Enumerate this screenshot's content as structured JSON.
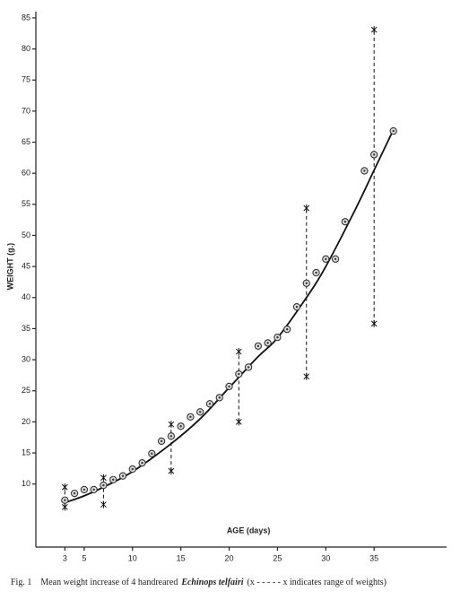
{
  "chart_data": {
    "type": "scatter",
    "xlabel": "AGE (days)",
    "ylabel": "WEIGHT (g.)",
    "xlim": [
      0,
      42.5
    ],
    "ylim": [
      0,
      86
    ],
    "xticks": [
      3,
      5,
      10,
      15,
      20,
      25,
      30,
      35
    ],
    "yticks": [
      10,
      15,
      20,
      25,
      30,
      35,
      40,
      45,
      50,
      55,
      60,
      65,
      70,
      75,
      80,
      85
    ],
    "color": "#333333",
    "points": {
      "x": [
        3,
        4,
        5,
        6,
        7,
        8,
        9,
        10,
        11,
        12,
        13,
        14,
        15,
        16,
        17,
        18,
        19,
        20,
        21,
        22,
        23,
        24,
        25,
        26,
        27,
        28,
        29,
        30,
        31,
        32,
        34,
        35,
        37
      ],
      "values": [
        7.4,
        8.5,
        9.1,
        9.1,
        9.8,
        10.7,
        11.3,
        12.4,
        13.4,
        14.9,
        16.9,
        17.7,
        19.3,
        20.8,
        21.6,
        22.9,
        23.9,
        25.7,
        27.7,
        28.8,
        32.2,
        32.7,
        33.6,
        34.9,
        38.5,
        42.3,
        44.0,
        46.2,
        46.2,
        52.2,
        60.4,
        63.0,
        66.8
      ]
    },
    "ranges": {
      "x": [
        3,
        7,
        14,
        21,
        28,
        35
      ],
      "low": [
        6.3,
        6.7,
        12.1,
        20.0,
        27.3,
        35.8
      ],
      "high": [
        9.5,
        11.0,
        19.6,
        31.3,
        54.4,
        83.1
      ]
    },
    "fit": {
      "x": [
        3,
        5,
        7,
        10,
        14,
        17,
        20,
        23,
        25,
        28,
        30,
        33,
        35,
        37
      ],
      "values": [
        7.0,
        8.1,
        9.5,
        12.0,
        16.5,
        20.5,
        25.5,
        30.5,
        33.5,
        40.0,
        45.0,
        54.0,
        60.5,
        67.0
      ]
    },
    "caption": {
      "lead": "Fig. 1",
      "before": "Mean weight increase of 4 handreared",
      "species": "Echinops telfairi",
      "after": "(x - - - - - x indicates range of weights)"
    }
  }
}
